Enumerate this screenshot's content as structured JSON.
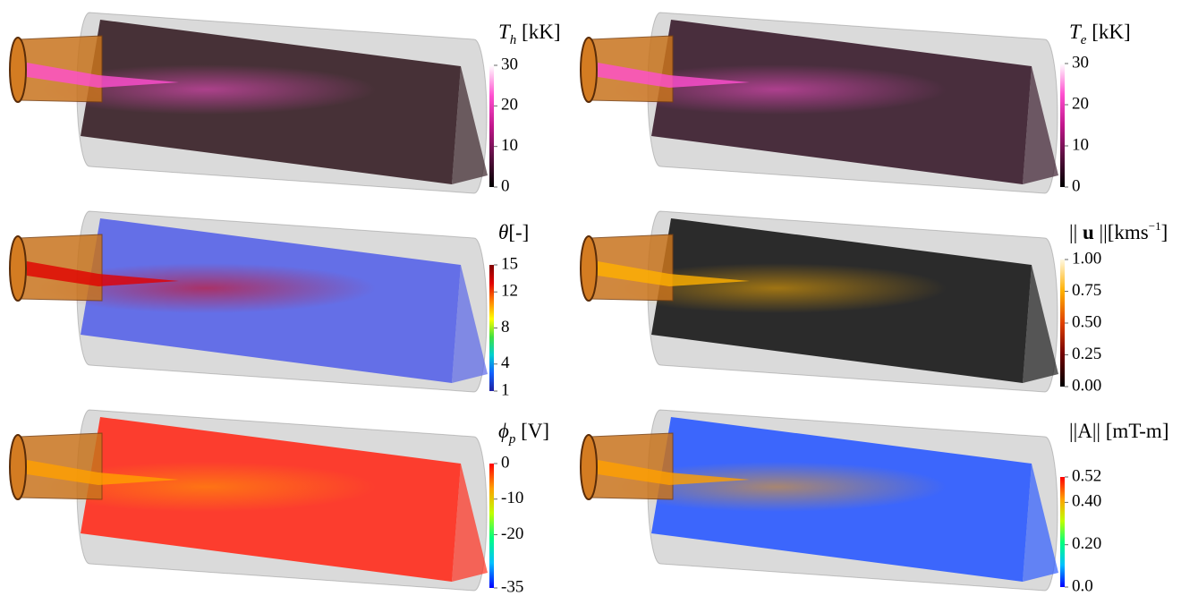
{
  "panels": [
    {
      "label": [
        {
          "text": "T",
          "style": "italic"
        },
        {
          "text": "h",
          "style": "sub"
        },
        {
          "text": " [kK]",
          "style": "normal"
        }
      ],
      "range": [
        0,
        30
      ],
      "ticks": [
        30,
        20,
        10,
        0
      ],
      "colormap": [
        "#000000",
        "#5a1040",
        "#c2168c",
        "#ff4fd0",
        "#ffffff"
      ],
      "field_color": "#3b2329"
    },
    {
      "label": [
        {
          "text": "T",
          "style": "italic"
        },
        {
          "text": "e",
          "style": "sub"
        },
        {
          "text": " [kK]",
          "style": "normal"
        }
      ],
      "range": [
        0,
        30
      ],
      "ticks": [
        30,
        20,
        10,
        0
      ],
      "colormap": [
        "#000000",
        "#5a1040",
        "#c2168c",
        "#ff4fd0",
        "#ffffff"
      ],
      "field_color": "#3d2030"
    },
    {
      "label": [
        {
          "text": "θ",
          "style": "italic"
        },
        {
          "text": "[-]",
          "style": "normal"
        }
      ],
      "range": [
        1,
        15
      ],
      "ticks": [
        15,
        12,
        8,
        4,
        1
      ],
      "colormap": [
        "#2020a0",
        "#1060ff",
        "#00d0d0",
        "#40e040",
        "#ffff00",
        "#ff8000",
        "#e00000",
        "#800000"
      ],
      "field_color": "#5a66e8"
    },
    {
      "label": [
        {
          "text": "|| ",
          "style": "normal"
        },
        {
          "text": "u",
          "style": "bold"
        },
        {
          "text": " ||[kms",
          "style": "normal"
        },
        {
          "text": "−1",
          "style": "sup"
        },
        {
          "text": "]",
          "style": "normal"
        }
      ],
      "range": [
        0,
        1
      ],
      "ticks": [
        {
          "value": 1,
          "label": "1.00"
        },
        {
          "value": 0.75,
          "label": "0.75"
        },
        {
          "value": 0.5,
          "label": "0.50"
        },
        {
          "value": 0.25,
          "label": "0.25"
        },
        {
          "value": 0,
          "label": "0.00"
        }
      ],
      "colormap": [
        "#000000",
        "#700000",
        "#e04000",
        "#ffb000",
        "#fff8e0"
      ],
      "field_color": "#1c1c1c"
    },
    {
      "label": [
        {
          "text": "ϕ",
          "style": "italic"
        },
        {
          "text": "p",
          "style": "sub"
        },
        {
          "text": " [V]",
          "style": "normal"
        }
      ],
      "range": [
        -35,
        0
      ],
      "ticks": [
        0,
        -10,
        -20,
        -35
      ],
      "colormap": [
        "#0000ff",
        "#00c0ff",
        "#00ff80",
        "#c0ff00",
        "#ffa000",
        "#ff0000"
      ],
      "field_color": "#ff3020"
    },
    {
      "label": [
        {
          "text": "||A|| [mT-m]",
          "style": "normal"
        }
      ],
      "range": [
        0,
        0.52
      ],
      "ticks": [
        0.52,
        {
          "value": 0.4,
          "label": "0.40"
        },
        {
          "value": 0.2,
          "label": "0.20"
        },
        {
          "value": 0,
          "label": "0.0"
        }
      ],
      "colormap": [
        "#0000ff",
        "#00c0ff",
        "#00ff80",
        "#c0ff00",
        "#ffa000",
        "#ff0000"
      ],
      "field_color": "#2f5cff"
    }
  ]
}
